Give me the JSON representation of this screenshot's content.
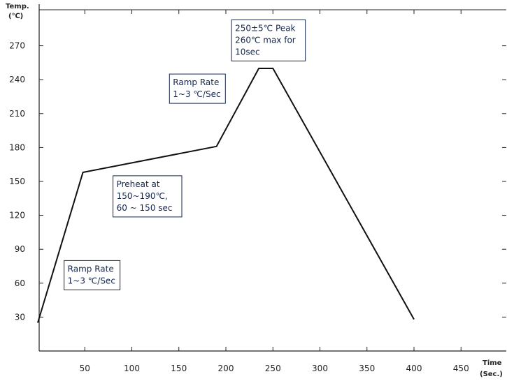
{
  "chart_data": {
    "type": "line",
    "y_title": [
      "Temp.",
      "(℃)"
    ],
    "x_title": [
      "Time",
      "(Sec.)"
    ],
    "xlim": [
      0,
      500
    ],
    "ylim": [
      0,
      300
    ],
    "x_ticks": [
      50,
      100,
      150,
      200,
      250,
      300,
      350,
      400,
      450
    ],
    "y_ticks": [
      30,
      60,
      90,
      120,
      150,
      180,
      210,
      240,
      270
    ],
    "grid": false,
    "series": [
      {
        "x": [
          0,
          48,
          190,
          235,
          250,
          400
        ],
        "y": [
          25,
          158,
          181,
          250,
          250,
          28
        ]
      }
    ],
    "annotations": [
      {
        "lines": [
          "Ramp Rate",
          "1~3 ℃/Sec"
        ],
        "x": 28,
        "y": 80
      },
      {
        "lines": [
          "Preheat at",
          "150~190℃,",
          "60 ~ 150 sec"
        ],
        "x": 80,
        "y": 155
      },
      {
        "lines": [
          "Ramp Rate",
          "1~3 ℃/Sec"
        ],
        "x": 140,
        "y": 245
      },
      {
        "lines": [
          "250±5℃ Peak",
          "260℃ max  for",
          "10sec"
        ],
        "x": 206,
        "y": 293
      }
    ]
  },
  "colors": {
    "curve": "#111111",
    "axis": "#222222",
    "note_border": "#14264d",
    "note_text": "#14264d"
  }
}
